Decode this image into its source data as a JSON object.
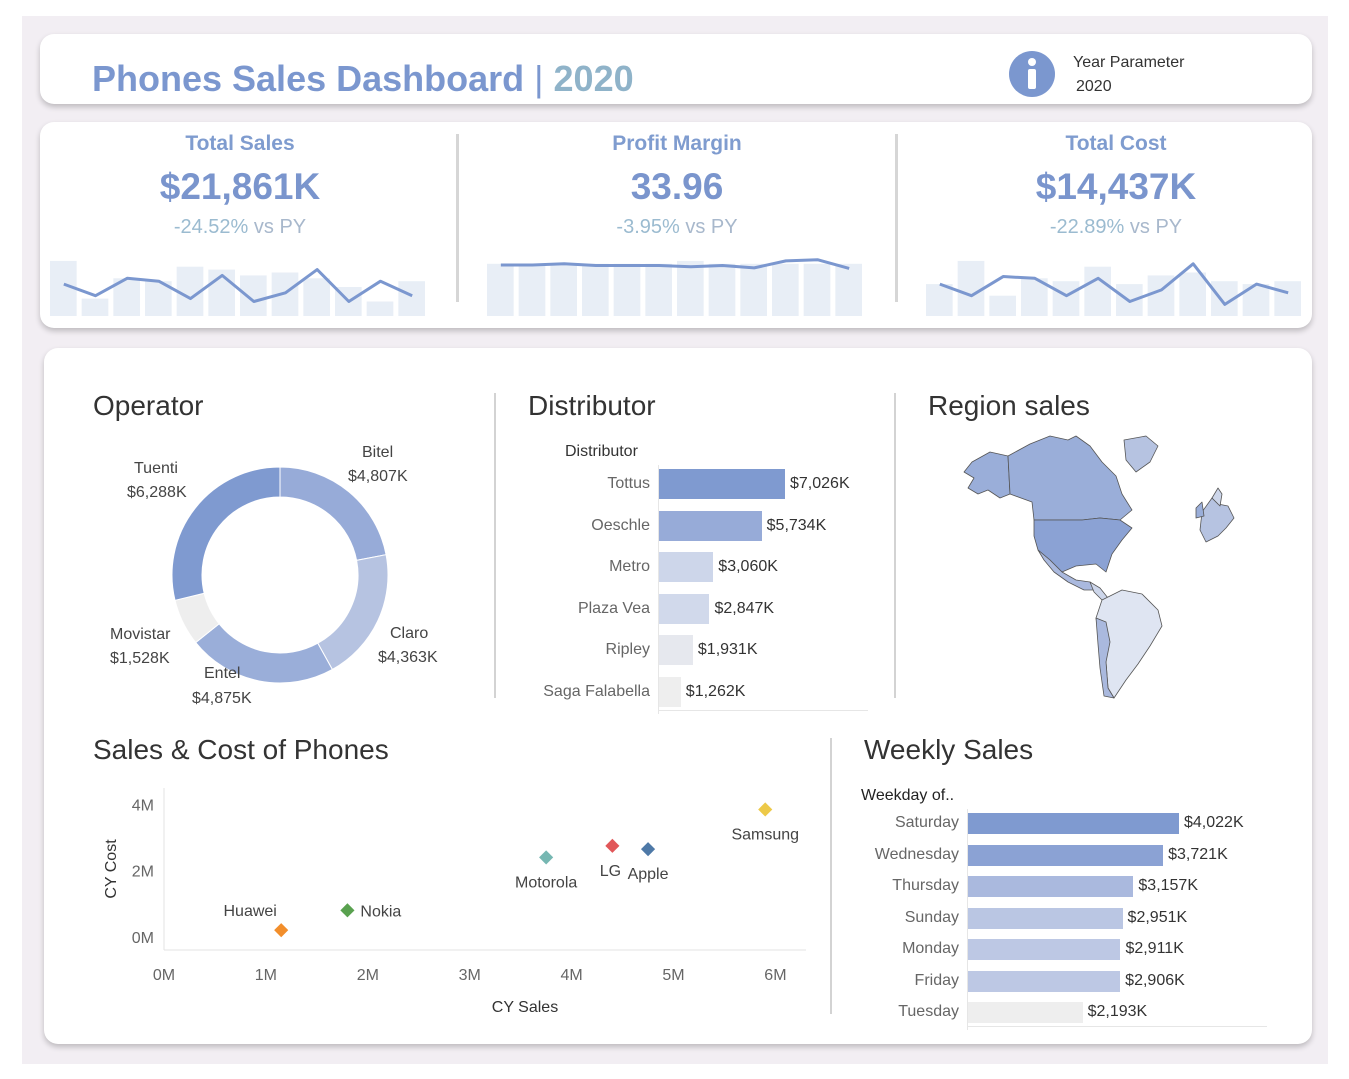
{
  "header": {
    "title": "Phones Sales Dashboard",
    "title_sep": "|",
    "title_year": "2020",
    "param_label": "Year Parameter",
    "param_value": "2020",
    "info_icon": "info-icon"
  },
  "kpis": [
    {
      "title": "Total Sales",
      "value": "$21,861K",
      "delta": "-24.52%",
      "vs": "vs PY",
      "bars": [
        0.95,
        0.3,
        0.65,
        0.6,
        0.85,
        0.8,
        0.7,
        0.75,
        0.65,
        0.5,
        0.25,
        0.6
      ],
      "line": [
        0.55,
        0.35,
        0.65,
        0.6,
        0.3,
        0.7,
        0.25,
        0.4,
        0.8,
        0.25,
        0.6,
        0.35
      ]
    },
    {
      "title": "Profit Margin",
      "value": "33.96",
      "delta": "-3.95%",
      "vs": "vs PY",
      "bars": [
        0.9,
        0.9,
        0.9,
        0.9,
        0.9,
        0.9,
        0.95,
        0.9,
        0.9,
        0.9,
        0.9,
        0.9
      ],
      "line": [
        0.88,
        0.88,
        0.9,
        0.87,
        0.87,
        0.87,
        0.85,
        0.87,
        0.83,
        0.95,
        0.97,
        0.82
      ]
    },
    {
      "title": "Total Cost",
      "value": "$14,437K",
      "delta": "-22.89%",
      "vs": "vs PY",
      "bars": [
        0.55,
        0.95,
        0.35,
        0.65,
        0.6,
        0.85,
        0.55,
        0.7,
        0.75,
        0.6,
        0.55,
        0.6
      ],
      "line": [
        0.55,
        0.35,
        0.68,
        0.65,
        0.35,
        0.65,
        0.25,
        0.45,
        0.9,
        0.2,
        0.55,
        0.4
      ]
    }
  ],
  "operator": {
    "title": "Operator",
    "slices": [
      {
        "name": "Bitel",
        "value": 4807,
        "label": "$4,807K",
        "color": "#97abd8"
      },
      {
        "name": "Claro",
        "value": 4363,
        "label": "$4,363K",
        "color": "#b6c3e1"
      },
      {
        "name": "Entel",
        "value": 4875,
        "label": "$4,875K",
        "color": "#9aaed9"
      },
      {
        "name": "Movistar",
        "value": 1528,
        "label": "$1,528K",
        "color": "#eeeeee"
      },
      {
        "name": "Tuenti",
        "value": 6288,
        "label": "$6,288K",
        "color": "#7f9ad0"
      }
    ]
  },
  "distributor": {
    "title": "Distributor",
    "column_header": "Distributor",
    "rows": [
      {
        "name": "Tottus",
        "value": 7026,
        "label": "$7,026K",
        "color": "#7f9ad0"
      },
      {
        "name": "Oeschle",
        "value": 5734,
        "label": "$5,734K",
        "color": "#97abd8"
      },
      {
        "name": "Metro",
        "value": 3060,
        "label": "$3,060K",
        "color": "#cdd6ea"
      },
      {
        "name": "Plaza Vea",
        "value": 2847,
        "label": "$2,847K",
        "color": "#d1d9eb"
      },
      {
        "name": "Ripley",
        "value": 1931,
        "label": "$1,931K",
        "color": "#e6e8ee"
      },
      {
        "name": "Saga Falabella",
        "value": 1262,
        "label": "$1,262K",
        "color": "#eeeeee"
      }
    ]
  },
  "region": {
    "title": "Region sales"
  },
  "scatter": {
    "title": "Sales & Cost of Phones",
    "xlabel": "CY Sales",
    "ylabel": "CY Cost",
    "xticks": [
      "0M",
      "1M",
      "2M",
      "3M",
      "4M",
      "5M",
      "6M"
    ],
    "yticks": [
      "0M",
      "2M",
      "4M"
    ],
    "xlim": [
      0,
      6.3
    ],
    "ylim": [
      -0.4,
      4.5
    ],
    "points": [
      {
        "name": "Huawei",
        "x": 1.15,
        "y": 0.2,
        "color": "#f28e2b"
      },
      {
        "name": "Nokia",
        "x": 1.8,
        "y": 0.8,
        "color": "#59a14f"
      },
      {
        "name": "Motorola",
        "x": 3.75,
        "y": 2.4,
        "color": "#76b7b2"
      },
      {
        "name": "LG",
        "x": 4.4,
        "y": 2.75,
        "color": "#e15759"
      },
      {
        "name": "Apple",
        "x": 4.75,
        "y": 2.65,
        "color": "#4e79a7"
      },
      {
        "name": "Samsung",
        "x": 5.9,
        "y": 3.85,
        "color": "#edc948"
      }
    ]
  },
  "weekly": {
    "title": "Weekly Sales",
    "column_header": "Weekday of..",
    "rows": [
      {
        "name": "Saturday",
        "value": 4022,
        "label": "$4,022K",
        "color": "#7f9ad0"
      },
      {
        "name": "Wednesday",
        "value": 3721,
        "label": "$3,721K",
        "color": "#8ba2d4"
      },
      {
        "name": "Thursday",
        "value": 3157,
        "label": "$3,157K",
        "color": "#aab9de"
      },
      {
        "name": "Sunday",
        "value": 2951,
        "label": "$2,951K",
        "color": "#bac6e3"
      },
      {
        "name": "Monday",
        "value": 2911,
        "label": "$2,911K",
        "color": "#bdc8e4"
      },
      {
        "name": "Friday",
        "value": 2906,
        "label": "$2,906K",
        "color": "#bdc8e4"
      },
      {
        "name": "Tuesday",
        "value": 2193,
        "label": "$2,193K",
        "color": "#eeeeee"
      }
    ]
  }
}
